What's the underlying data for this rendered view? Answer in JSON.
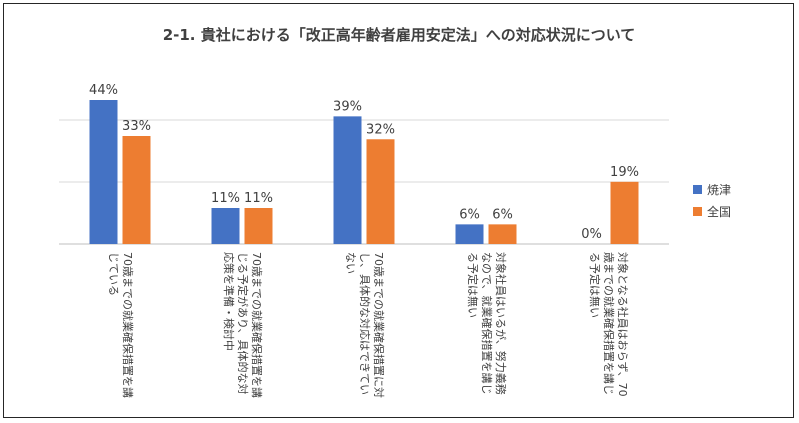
{
  "chart_data": {
    "type": "bar",
    "title": "2-1. 貴社における「改正高年齢者雇用安定法」への対応状況について",
    "categories": [
      [
        "70歳までの就業確保措置を講",
        "じている"
      ],
      [
        "70歳までの就業確保措置を講",
        "じる予定があり、具体的な対",
        "応策を準備・検討中"
      ],
      [
        "70歳までの就業確保措置に対",
        "し、具体的な対応はできてい",
        "ない"
      ],
      [
        "対象社員はいるが、努力義務",
        "なので、就業確保措置を講じ",
        "る予定は無い"
      ],
      [
        "対象となる社員はおらず、70",
        "歳までの就業確保措置を講じ",
        "る予定は無い"
      ]
    ],
    "series": [
      {
        "name": "焼津",
        "values": [
          44,
          11,
          39,
          6,
          0
        ],
        "color": "#4472C4"
      },
      {
        "name": "全国",
        "values": [
          33,
          11,
          32,
          6,
          19
        ],
        "color": "#ED7D31"
      }
    ],
    "value_suffix": "%",
    "ylim": [
      0,
      55
    ],
    "grid": true,
    "legend_position": "right"
  },
  "colors": {
    "gridline": "#D9D9D9",
    "axis": "#BFBFBF",
    "text": "#404040"
  }
}
